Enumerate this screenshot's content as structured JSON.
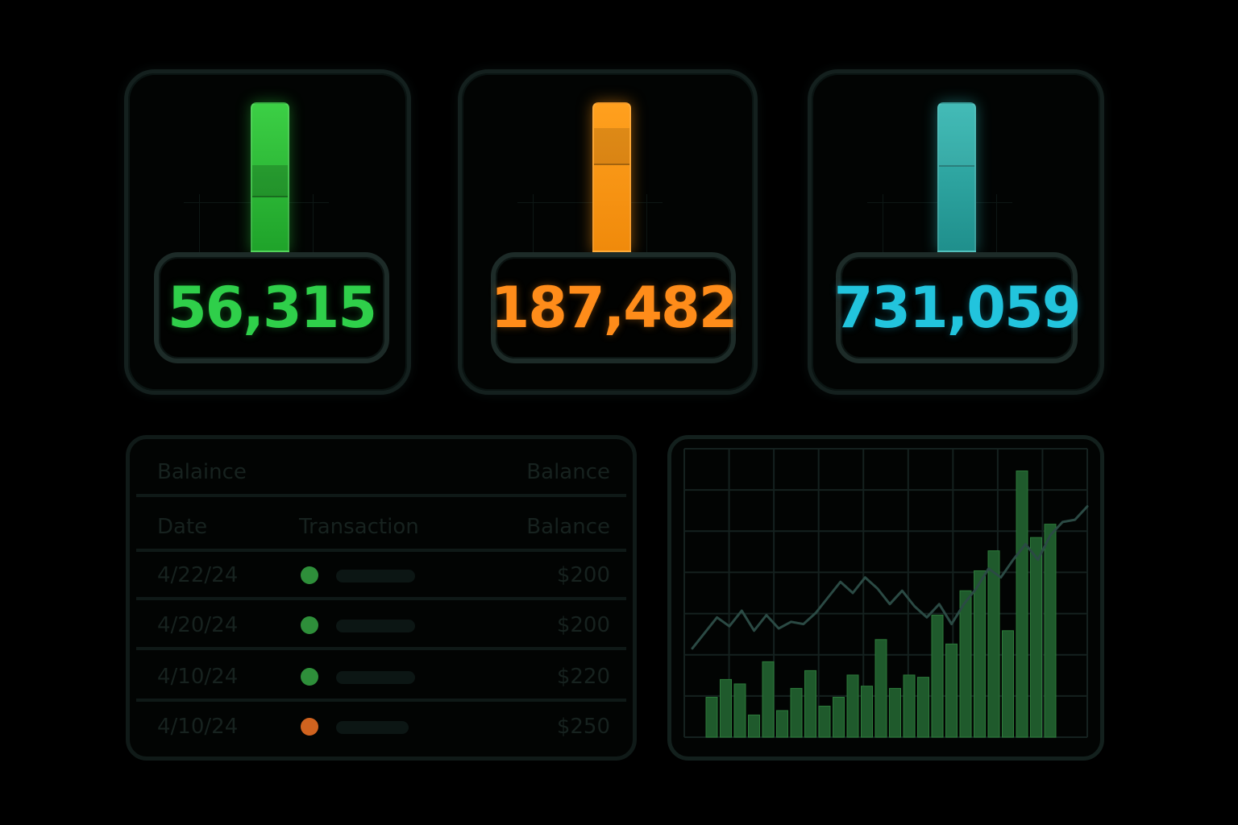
{
  "stats": [
    {
      "value": "56,315",
      "color": "#2fcf4a",
      "gauge_color": "#33c23d"
    },
    {
      "value": "187,482",
      "color": "#ff8c1a",
      "gauge_color": "#f5930f"
    },
    {
      "value": "731,059",
      "color": "#22c4dd",
      "gauge_color": "#2aa8a5"
    }
  ],
  "table": {
    "header_row_1": {
      "left": "Balaince",
      "right": "Balance"
    },
    "header_row_2": {
      "date": "Date",
      "transaction": "Transaction",
      "balance": "Balance"
    },
    "rows": [
      {
        "date": "4/22/24",
        "status_color": "#2e8f3a",
        "amount": "$200"
      },
      {
        "date": "4/20/24",
        "status_color": "#2e8f3a",
        "amount": "$200"
      },
      {
        "date": "4/10/24",
        "status_color": "#2e8f3a",
        "amount": "$220"
      },
      {
        "date": "4/10/24",
        "status_color": "#d0631f",
        "amount": "$250"
      }
    ]
  },
  "chart_data": {
    "type": "line",
    "series": [
      {
        "values": [
          40,
          47,
          54,
          50,
          57,
          48,
          55,
          49,
          52,
          51,
          56,
          63,
          70,
          65,
          72,
          67,
          60,
          66,
          59,
          54,
          60,
          51,
          60,
          67,
          76,
          72,
          80,
          87,
          80,
          91,
          97,
          98,
          104
        ]
      },
      {
        "values": [
          18,
          26,
          24,
          10,
          34,
          12,
          22,
          30,
          14,
          18,
          28,
          23,
          44,
          22,
          28,
          27,
          55,
          42,
          66,
          75,
          84,
          48,
          120,
          90,
          96
        ]
      }
    ],
    "ylim": [
      0,
      130
    ],
    "grid": true,
    "line_color": "#2b4a44",
    "bar_color": "#1f5a2c"
  }
}
